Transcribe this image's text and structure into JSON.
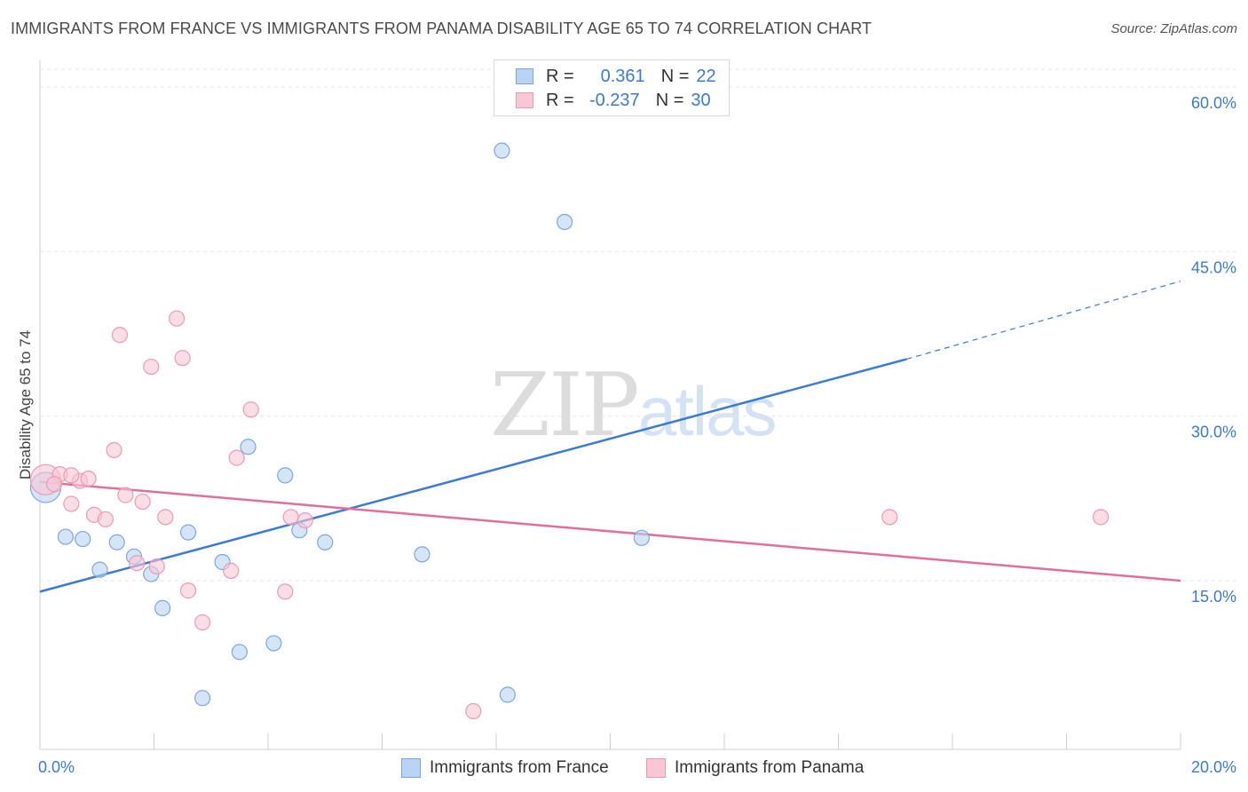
{
  "header": {
    "title": "IMMIGRANTS FROM FRANCE VS IMMIGRANTS FROM PANAMA DISABILITY AGE 65 TO 74 CORRELATION CHART",
    "source": "Source: ZipAtlas.com"
  },
  "watermark": {
    "zip": "ZIP",
    "atlas": "atlas"
  },
  "legend": {
    "france": {
      "r_label": "R =",
      "r_value": "0.361",
      "n_label": "N =",
      "n_value": "22"
    },
    "panama": {
      "r_label": "R =",
      "r_value": "-0.237",
      "n_label": "N =",
      "n_value": "30"
    }
  },
  "bottom_legend": {
    "france": "Immigrants from France",
    "panama": "Immigrants from Panama"
  },
  "colors": {
    "france_fill": "#b8d3f3",
    "france_stroke": "#7aa7e0",
    "france_line": "#3a7bd5",
    "panama_fill": "#f8c7d6",
    "panama_stroke": "#ec9ab4",
    "panama_line": "#e0709a",
    "axis_text": "#3a7bd5"
  },
  "chart_data": {
    "type": "scatter",
    "title": "IMMIGRANTS FROM FRANCE VS IMMIGRANTS FROM PANAMA DISABILITY AGE 65 TO 74 CORRELATION CHART",
    "xlabel": "",
    "ylabel": "Disability Age 65 to 74",
    "xlim": [
      0,
      20
    ],
    "ylim": [
      0,
      63
    ],
    "x_tick_labels": [
      "0.0%",
      "20.0%"
    ],
    "y_ticks": [
      15,
      30,
      45,
      60
    ],
    "y_tick_labels": [
      "15.0%",
      "30.0%",
      "45.0%",
      "60.0%"
    ],
    "grid": true,
    "series": [
      {
        "name": "Immigrants from France",
        "points": [
          {
            "x": 0.1,
            "y": 23.5,
            "big": true
          },
          {
            "x": 0.45,
            "y": 19.0
          },
          {
            "x": 0.75,
            "y": 18.8
          },
          {
            "x": 1.05,
            "y": 16.0
          },
          {
            "x": 1.35,
            "y": 18.5
          },
          {
            "x": 1.65,
            "y": 17.2
          },
          {
            "x": 1.95,
            "y": 15.6
          },
          {
            "x": 2.15,
            "y": 12.5
          },
          {
            "x": 2.6,
            "y": 19.4
          },
          {
            "x": 2.85,
            "y": 4.3
          },
          {
            "x": 3.2,
            "y": 16.7
          },
          {
            "x": 3.5,
            "y": 8.5
          },
          {
            "x": 3.65,
            "y": 27.2
          },
          {
            "x": 4.1,
            "y": 9.3
          },
          {
            "x": 4.3,
            "y": 24.6
          },
          {
            "x": 4.55,
            "y": 19.6
          },
          {
            "x": 5.0,
            "y": 18.5
          },
          {
            "x": 6.7,
            "y": 17.4
          },
          {
            "x": 8.1,
            "y": 54.2
          },
          {
            "x": 8.2,
            "y": 4.6
          },
          {
            "x": 9.2,
            "y": 47.7
          },
          {
            "x": 10.55,
            "y": 18.9
          }
        ],
        "trend": {
          "x0": 0,
          "y0": 14.0,
          "x1": 15.2,
          "y1": 35.2,
          "dash_to_x": 20,
          "dash_to_y": 42.3
        }
      },
      {
        "name": "Immigrants from Panama",
        "points": [
          {
            "x": 0.1,
            "y": 24.2,
            "big": true
          },
          {
            "x": 0.35,
            "y": 24.7
          },
          {
            "x": 0.55,
            "y": 22.0
          },
          {
            "x": 0.7,
            "y": 24.1
          },
          {
            "x": 0.85,
            "y": 24.3
          },
          {
            "x": 0.95,
            "y": 21.0
          },
          {
            "x": 1.15,
            "y": 20.6
          },
          {
            "x": 1.3,
            "y": 26.9
          },
          {
            "x": 1.4,
            "y": 37.4
          },
          {
            "x": 1.5,
            "y": 22.8
          },
          {
            "x": 1.7,
            "y": 16.6
          },
          {
            "x": 1.8,
            "y": 22.2
          },
          {
            "x": 1.95,
            "y": 34.5
          },
          {
            "x": 2.05,
            "y": 16.3
          },
          {
            "x": 2.2,
            "y": 20.8
          },
          {
            "x": 2.4,
            "y": 38.9
          },
          {
            "x": 2.5,
            "y": 35.3
          },
          {
            "x": 2.6,
            "y": 14.1
          },
          {
            "x": 2.85,
            "y": 11.2
          },
          {
            "x": 3.35,
            "y": 15.9
          },
          {
            "x": 3.45,
            "y": 26.2
          },
          {
            "x": 3.7,
            "y": 30.6
          },
          {
            "x": 4.3,
            "y": 14.0
          },
          {
            "x": 4.4,
            "y": 20.8
          },
          {
            "x": 4.65,
            "y": 20.5
          },
          {
            "x": 7.6,
            "y": 3.1
          },
          {
            "x": 14.9,
            "y": 20.8
          },
          {
            "x": 18.6,
            "y": 20.8
          },
          {
            "x": 0.55,
            "y": 24.6
          },
          {
            "x": 0.25,
            "y": 23.8
          }
        ],
        "trend": {
          "x0": 0,
          "y0": 24.0,
          "x1": 20,
          "y1": 15.0
        }
      }
    ]
  }
}
